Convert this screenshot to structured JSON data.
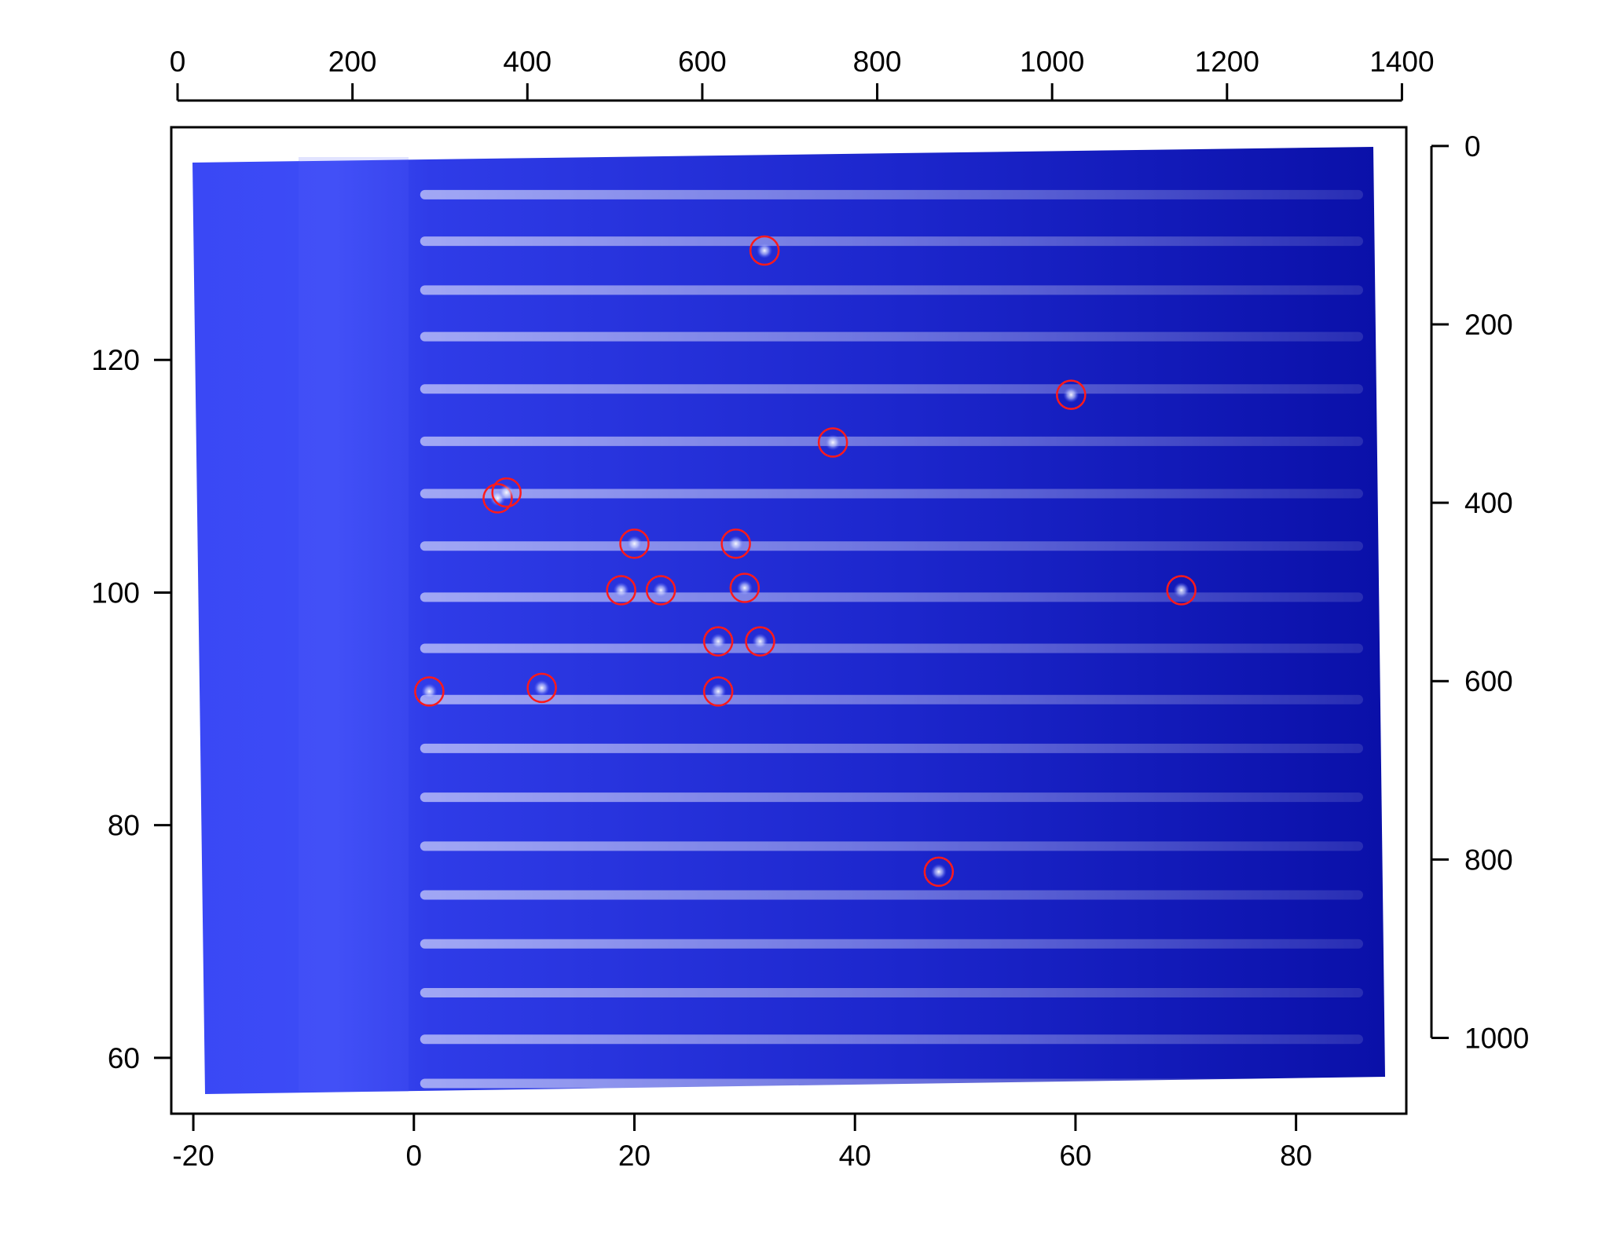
{
  "chart_data": {
    "type": "scatter",
    "title": "",
    "xlabel": "",
    "ylabel": "",
    "grid": false,
    "legend": "none",
    "background_image": "blue fluorescence micrograph of a comb of horizontal channels",
    "colors": {
      "image_light": "#3a48f5",
      "image_dark": "#0a10a8",
      "stripe": "#8a9cff",
      "marker": "#ff1a1a"
    },
    "axes": {
      "bottom": {
        "range": [
          -22,
          90
        ],
        "ticks": [
          -20,
          0,
          20,
          40,
          60,
          80
        ],
        "tick_labels": [
          "-20",
          "0",
          "20",
          "40",
          "60",
          "80"
        ]
      },
      "left": {
        "range": [
          55.2,
          140
        ],
        "ticks": [
          60,
          80,
          100,
          120
        ],
        "tick_labels": [
          "60",
          "80",
          "100",
          "120"
        ]
      },
      "top": {
        "range": [
          -7.2,
          1405
        ],
        "ticks": [
          0,
          200,
          400,
          600,
          800,
          1000,
          1200,
          1400
        ],
        "tick_labels": [
          "0",
          "200",
          "400",
          "600",
          "800",
          "1000",
          "1200",
          "1400"
        ]
      },
      "right": {
        "range": [
          1085,
          -21
        ],
        "ticks": [
          0,
          200,
          400,
          600,
          800,
          1000
        ],
        "tick_labels": [
          "0",
          "200",
          "400",
          "600",
          "800",
          "1000"
        ],
        "reversed": true
      }
    },
    "channels_y": [
      134.2,
      130.2,
      126.0,
      122.0,
      117.5,
      113.0,
      108.5,
      104.0,
      99.6,
      95.2,
      90.8,
      86.6,
      82.4,
      78.2,
      74.0,
      69.8,
      65.6,
      61.6,
      57.8
    ],
    "series": [
      {
        "marker": "circle",
        "points": [
          {
            "x": 31.8,
            "y": 129.4
          },
          {
            "x": 59.6,
            "y": 117.0
          },
          {
            "x": 38.0,
            "y": 112.9
          },
          {
            "x": 7.6,
            "y": 108.1
          },
          {
            "x": 8.4,
            "y": 108.6
          },
          {
            "x": 20.0,
            "y": 104.2
          },
          {
            "x": 29.2,
            "y": 104.2
          },
          {
            "x": 18.8,
            "y": 100.2
          },
          {
            "x": 22.4,
            "y": 100.2
          },
          {
            "x": 30.0,
            "y": 100.4
          },
          {
            "x": 69.6,
            "y": 100.2
          },
          {
            "x": 27.6,
            "y": 95.8
          },
          {
            "x": 31.4,
            "y": 95.8
          },
          {
            "x": 1.4,
            "y": 91.5
          },
          {
            "x": 11.6,
            "y": 91.8
          },
          {
            "x": 27.6,
            "y": 91.5
          },
          {
            "x": 47.6,
            "y": 76.0
          }
        ]
      }
    ]
  }
}
